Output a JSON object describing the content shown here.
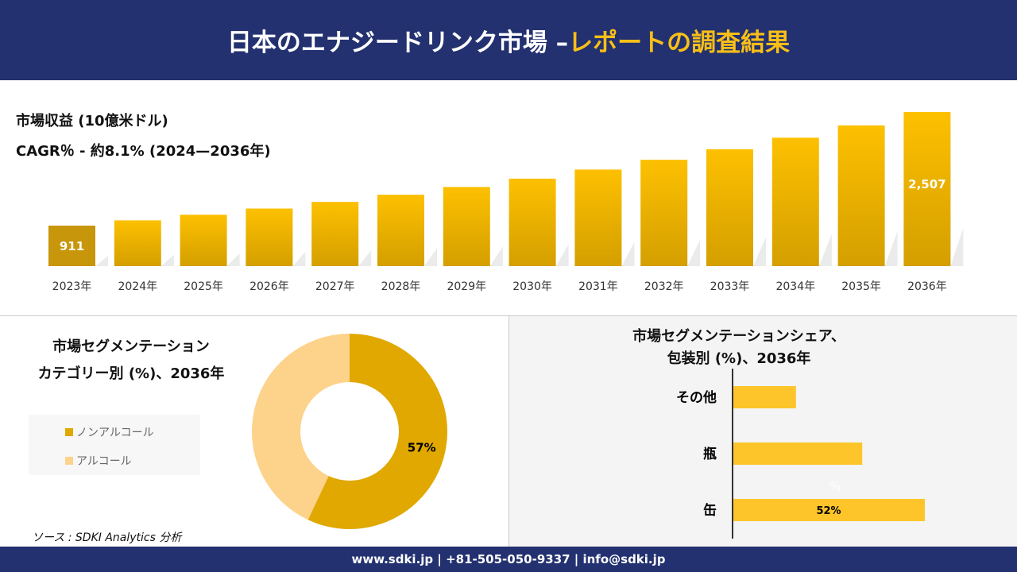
{
  "header": {
    "title_main": "日本のエナジードリンク市場 –",
    "title_highlight": "レポートの調査結果"
  },
  "colors": {
    "navy": "#233170",
    "gold": "#f9bf17",
    "bar": "#e0a800",
    "donut_dark": "#e0a800",
    "donut_light": "#fdd28a",
    "hbar": "#fdc52a"
  },
  "chart_data": [
    {
      "type": "bar",
      "title": "市場収益 (10億米ドル)",
      "subtitle": "CAGR％ - 約8.1% (2024—2036年)",
      "categories": [
        "2023年",
        "2024年",
        "2025年",
        "2026年",
        "2027年",
        "2028年",
        "2029年",
        "2030年",
        "2031年",
        "2032年",
        "2033年",
        "2034年",
        "2035年",
        "2036年"
      ],
      "values": [
        911,
        985,
        1064,
        1151,
        1244,
        1345,
        1454,
        1571,
        1699,
        1836,
        1985,
        2146,
        2319,
        2507
      ],
      "data_labels": {
        "0": "911",
        "13": "2,507"
      }
    },
    {
      "type": "pie",
      "title_line1": "市場セグメンテーション",
      "title_line2": "カテゴリー別 (%)、2036年",
      "slices": [
        {
          "name": "ノンアルコール",
          "value": 57,
          "label": "57%"
        },
        {
          "name": "アルコール",
          "value": 43
        }
      ]
    },
    {
      "type": "bar",
      "orientation": "horizontal",
      "title_line1": "市場セグメンテーションシェア、",
      "title_line2": "包装別 (%)、2036年",
      "categories": [
        "その他",
        "瓶",
        "缶"
      ],
      "values": [
        17,
        35,
        52
      ],
      "data_labels": {
        "2": "52%"
      },
      "stray_text": "%"
    }
  ],
  "source": "ソース : SDKI Analytics 分析",
  "footer": "www.sdki.jp | +81-505-050-9337 | info@sdki.jp"
}
